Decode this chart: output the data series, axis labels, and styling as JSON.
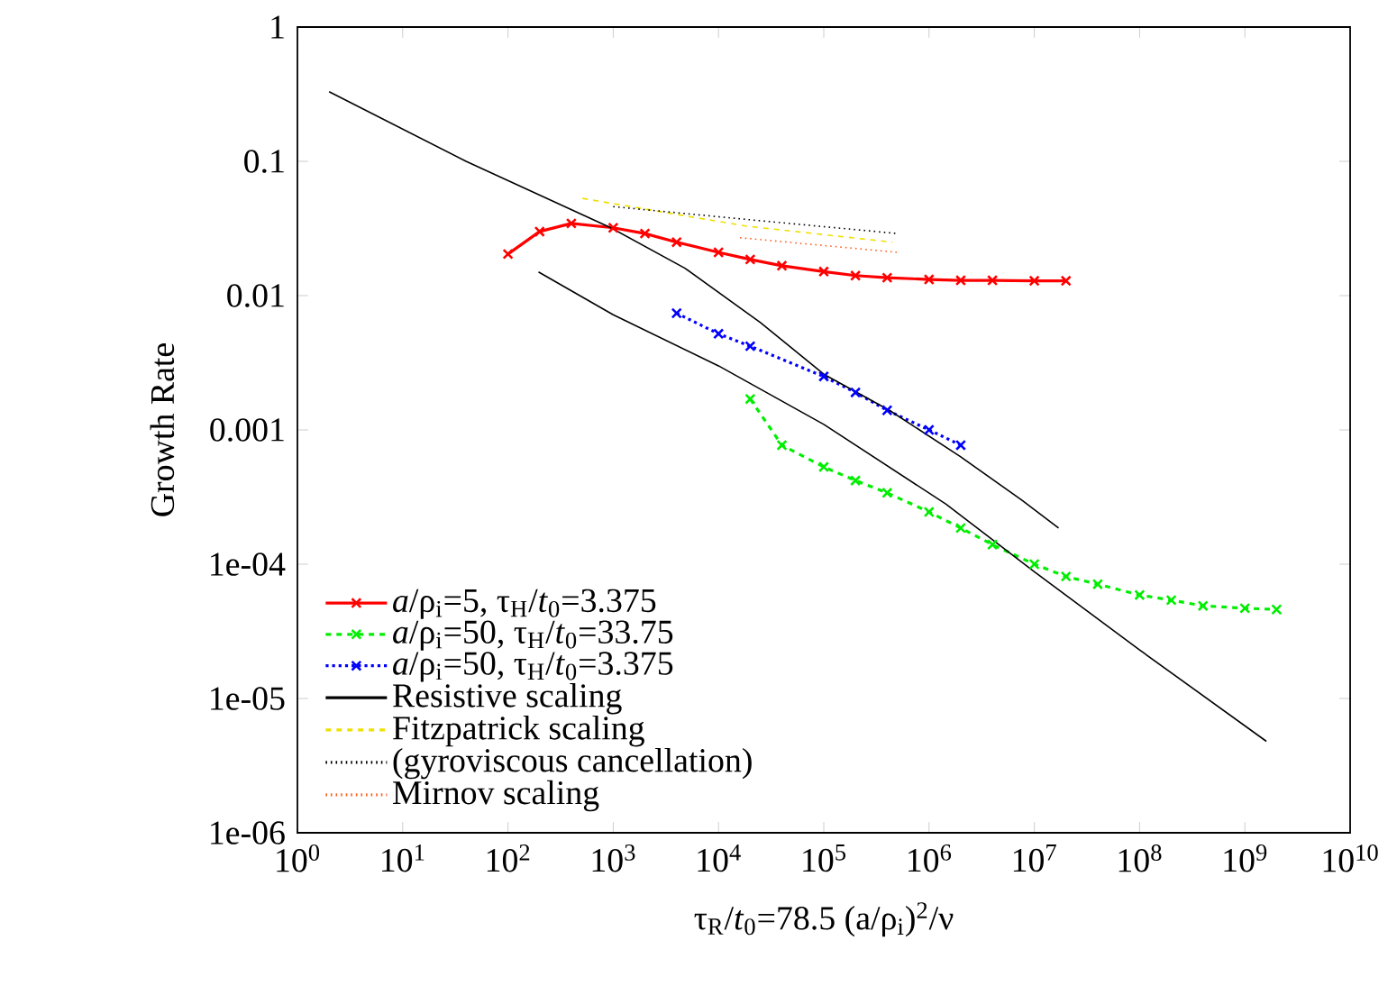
{
  "chart_data": {
    "type": "line",
    "xlabel": "τ$_{R}$/*t*$_{0}$=78.5 (a/ρ$_{i}$)$^{2}$/ν",
    "ylabel": "Growth Rate",
    "log": "xy",
    "xlim": [
      1,
      10000000000
    ],
    "ylim": [
      1e-06,
      1
    ],
    "xticks": [
      {
        "value": 1,
        "label": "10$^{0}$"
      },
      {
        "value": 10,
        "label": "10$^{1}$"
      },
      {
        "value": 100,
        "label": "10$^{2}$"
      },
      {
        "value": 1000,
        "label": "10$^{3}$"
      },
      {
        "value": 10000,
        "label": "10$^{4}$"
      },
      {
        "value": 100000,
        "label": "10$^{5}$"
      },
      {
        "value": 1000000,
        "label": "10$^{6}$"
      },
      {
        "value": 10000000,
        "label": "10$^{7}$"
      },
      {
        "value": 100000000,
        "label": "10$^{8}$"
      },
      {
        "value": 1000000000,
        "label": "10$^{9}$"
      },
      {
        "value": 10000000000,
        "label": "10$^{10}$"
      }
    ],
    "yticks": [
      {
        "value": 1e-06,
        "label": "1e-06"
      },
      {
        "value": 1e-05,
        "label": "1e-05"
      },
      {
        "value": 0.0001,
        "label": "1e-04"
      },
      {
        "value": 0.001,
        "label": "0.001"
      },
      {
        "value": 0.01,
        "label": "0.01"
      },
      {
        "value": 0.1,
        "label": "0.1"
      },
      {
        "value": 1,
        "label": "1"
      }
    ],
    "legend": "bottom left",
    "series": [
      {
        "name": "*a*/ρ$_{i}$=5, τ$_{H}$/*t*$_{0}$=3.375",
        "color": "#ff0000",
        "marker": "cross",
        "line_style": "solid",
        "x": [
          100,
          200,
          400,
          1000,
          2000,
          4000,
          10000,
          20000,
          40000,
          100000,
          200000,
          400000,
          1000000,
          2000000,
          4000000,
          10000000,
          20000000
        ],
        "values": [
          0.0204,
          0.03,
          0.0345,
          0.032,
          0.029,
          0.025,
          0.021,
          0.0186,
          0.0167,
          0.0151,
          0.0141,
          0.0136,
          0.0132,
          0.013,
          0.013,
          0.0129,
          0.0129
        ]
      },
      {
        "name": "*a*/ρ$_{i}$=50, τ$_{H}$/*t*$_{0}$=33.75",
        "color": "#00ee00",
        "marker": "cross",
        "line_style": "dashed",
        "x": [
          20000,
          40000,
          100000,
          200000,
          400000,
          1000000,
          2000000,
          4000000,
          10000000,
          20000000,
          40000000,
          100000000,
          200000000,
          400000000,
          1000000000,
          2000000000
        ],
        "values": [
          0.0017,
          0.00077,
          0.00053,
          0.00042,
          0.00034,
          0.000245,
          0.000186,
          0.00014,
          0.0001,
          8.1e-05,
          7.1e-05,
          5.9e-05,
          5.4e-05,
          4.9e-05,
          4.7e-05,
          4.6e-05
        ]
      },
      {
        "name": "*a*/ρ$_{i}$=50, τ$_{H}$/*t*$_{0}$=3.375",
        "color": "#0000ff",
        "marker": "cross",
        "line_style": "dotted",
        "x": [
          4000,
          10000,
          20000,
          100000,
          200000,
          400000,
          1000000,
          2000000
        ],
        "values": [
          0.0074,
          0.0052,
          0.0042,
          0.0025,
          0.0019,
          0.0014,
          0.001,
          0.00077
        ]
      },
      {
        "name": "Resistive scaling",
        "color": "#000000",
        "marker": "none",
        "line_style": "solid",
        "x": [
          2,
          40,
          950,
          4800,
          25000,
          100000,
          420000,
          2000000,
          7600000,
          17000000
        ],
        "values": [
          0.33,
          0.1,
          0.032,
          0.016,
          0.0063,
          0.0026,
          0.0014,
          0.00063,
          0.0003,
          0.000186
        ]
      },
      {
        "color": "#000000",
        "marker": "none",
        "line_style": "solid",
        "x": [
          195,
          1000,
          10000,
          100000,
          1450000,
          10000000,
          100000000,
          1600000000
        ],
        "values": [
          0.015,
          0.0072,
          0.003,
          0.0011,
          0.00028,
          8.8e-05,
          2.3e-05,
          4.8e-06
        ]
      },
      {
        "name": "Fitzpatrick scaling",
        "color": "#f0e000",
        "marker": "none",
        "line_style": "dashed",
        "x": [
          510,
          18000,
          450000
        ],
        "values": [
          0.053,
          0.033,
          0.025
        ]
      },
      {
        "name": "(gyroviscous cancellation)",
        "color": "#000000",
        "marker": "none",
        "line_style": "dotted",
        "x": [
          1000,
          18000,
          500000
        ],
        "values": [
          0.046,
          0.037,
          0.029
        ]
      },
      {
        "name": "Mirnov scaling",
        "color": "#ff6020",
        "marker": "none",
        "line_style": "dotted",
        "x": [
          16000,
          500000
        ],
        "values": [
          0.027,
          0.021
        ]
      }
    ]
  }
}
